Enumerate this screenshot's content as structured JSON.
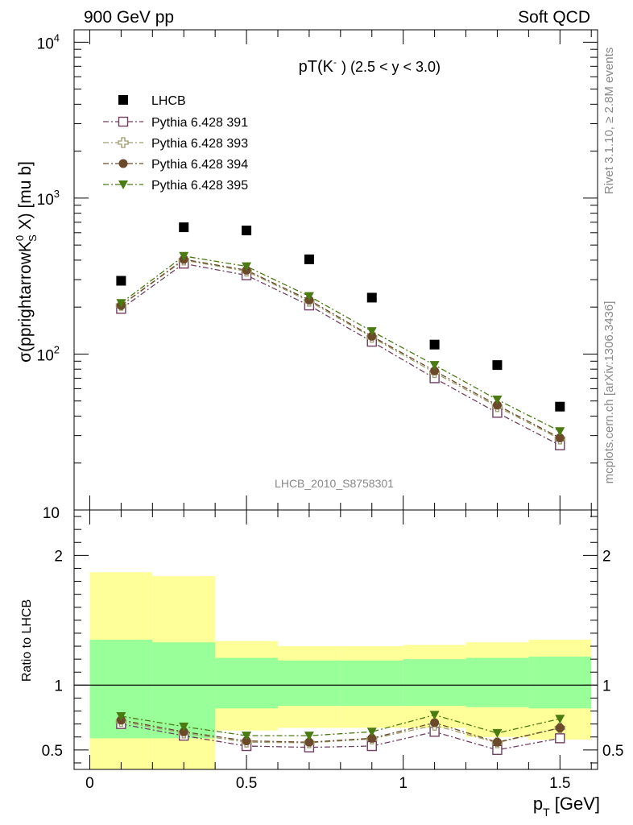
{
  "header": {
    "left": "900 GeV pp",
    "right": "Soft QCD"
  },
  "side_labels": {
    "rivet": "Rivet 3.1.10, ≥ 2.8M events",
    "mcplots": "mcplots.cern.ch [arXiv:1306.3436]"
  },
  "watermark": "LHCB_2010_S8758301",
  "colors": {
    "data": "#000000",
    "s391": "#6f3f5f",
    "s393": "#9c9c6c",
    "s394": "#6b4a2b",
    "s395": "#4a7a12",
    "band_inner": "#99ff99",
    "band_outer": "#ffff99"
  },
  "chart_data": [
    {
      "type": "scatter",
      "title_main": "pT(K",
      "title_sup": "-",
      "title_rest": ") (2.5 < y < 3.0)",
      "ylabel": "σ(pprightarrowK",
      "ylabel_sup": "0",
      "ylabel_sub": "S",
      "ylabel_rest": " X) [mu b]",
      "y_log": true,
      "ylim": [
        10,
        12000
      ],
      "xlim": [
        -0.05,
        1.62
      ],
      "y_ticks": [
        {
          "value": 10,
          "label": "10"
        },
        {
          "value": 100,
          "label": "10",
          "exp": "2"
        },
        {
          "value": 1000,
          "label": "10",
          "exp": "3"
        },
        {
          "value": 10000,
          "label": "10",
          "exp": "4"
        }
      ],
      "x": [
        0.1,
        0.3,
        0.5,
        0.7,
        0.9,
        1.1,
        1.3,
        1.5
      ],
      "series": [
        {
          "name": "LHCB",
          "values": [
            295,
            650,
            620,
            405,
            230,
            115,
            85,
            46
          ]
        },
        {
          "name": "Pythia 6.428 391",
          "values": [
            195,
            380,
            320,
            205,
            120,
            70,
            42,
            26
          ]
        },
        {
          "name": "Pythia 6.428 393",
          "values": [
            205,
            400,
            340,
            218,
            128,
            76,
            46,
            28.5
          ]
        },
        {
          "name": "Pythia 6.428 394",
          "values": [
            205,
            405,
            345,
            222,
            130,
            78,
            47,
            29
          ]
        },
        {
          "name": "Pythia 6.428 395",
          "values": [
            212,
            425,
            365,
            235,
            140,
            85,
            51,
            32
          ]
        }
      ]
    },
    {
      "type": "scatter",
      "ylabel": "Ratio to LHCB",
      "xlabel": "p",
      "xlabel_sub": "T",
      "xlabel_rest": " [GeV]",
      "ylim": [
        0.35,
        2.35
      ],
      "y_ticks": [
        {
          "value": 0.5,
          "label": "0.5"
        },
        {
          "value": 1,
          "label": "1"
        },
        {
          "value": 2,
          "label": "2"
        }
      ],
      "x_ticks": [
        {
          "value": 0,
          "label": "0"
        },
        {
          "value": 0.5,
          "label": "0.5"
        },
        {
          "value": 1,
          "label": "1"
        },
        {
          "value": 1.5,
          "label": "1.5"
        }
      ],
      "bins": [
        0,
        0.2,
        0.4,
        0.6,
        0.8,
        1.0,
        1.2,
        1.4,
        1.6
      ],
      "band_inner": [
        [
          0.59,
          1.35
        ],
        [
          0.59,
          1.33
        ],
        [
          0.82,
          1.21
        ],
        [
          0.84,
          1.19
        ],
        [
          0.84,
          1.19
        ],
        [
          0.84,
          1.2
        ],
        [
          0.83,
          1.21
        ],
        [
          0.82,
          1.22
        ]
      ],
      "band_outer": [
        [
          0.3,
          1.87
        ],
        [
          0.3,
          1.84
        ],
        [
          0.65,
          1.34
        ],
        [
          0.67,
          1.3
        ],
        [
          0.67,
          1.3
        ],
        [
          0.67,
          1.31
        ],
        [
          0.6,
          1.33
        ],
        [
          0.58,
          1.35
        ]
      ],
      "x": [
        0.1,
        0.3,
        0.5,
        0.7,
        0.9,
        1.1,
        1.3,
        1.5
      ],
      "series": [
        {
          "name": "Pythia 6.428 391",
          "values": [
            0.7,
            0.61,
            0.53,
            0.52,
            0.53,
            0.64,
            0.5,
            0.59
          ]
        },
        {
          "name": "Pythia 6.428 393",
          "values": [
            0.72,
            0.63,
            0.56,
            0.555,
            0.585,
            0.69,
            0.555,
            0.67
          ]
        },
        {
          "name": "Pythia 6.428 394",
          "values": [
            0.73,
            0.64,
            0.57,
            0.56,
            0.59,
            0.71,
            0.56,
            0.67
          ]
        },
        {
          "name": "Pythia 6.428 395",
          "values": [
            0.76,
            0.68,
            0.61,
            0.61,
            0.64,
            0.77,
            0.63,
            0.74
          ]
        }
      ]
    }
  ]
}
